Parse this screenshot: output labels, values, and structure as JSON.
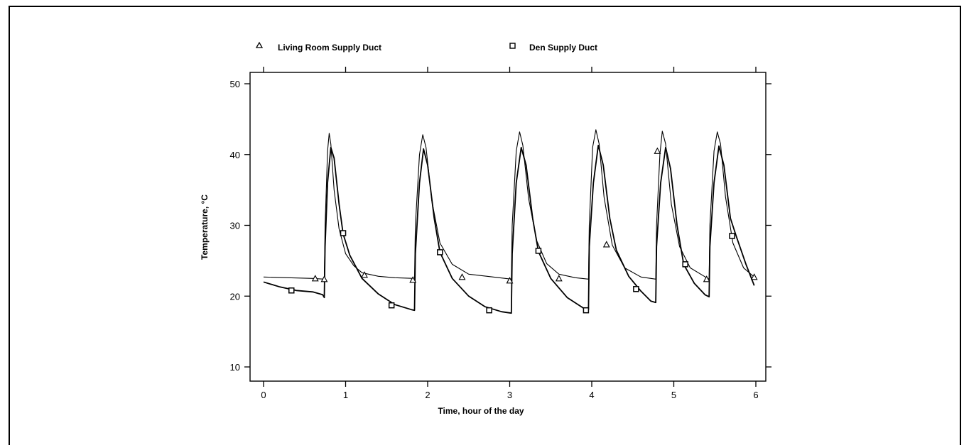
{
  "chart_data": {
    "type": "line",
    "xlabel": "Time, hour of the day",
    "ylabel": "Temperature,",
    "ylabel_unit": "°C",
    "xlim": [
      0,
      6
    ],
    "ylim": [
      10,
      50
    ],
    "xticks": [
      0,
      1,
      2,
      3,
      4,
      5,
      6
    ],
    "yticks": [
      10,
      20,
      30,
      40,
      50
    ],
    "legend_position": "top",
    "grid": false,
    "series": [
      {
        "name": "Living Room Supply Duct",
        "marker": "triangle",
        "color": "#000000",
        "x": [
          0.0,
          0.3,
          0.6,
          0.74,
          0.75,
          0.78,
          0.8,
          0.82,
          0.86,
          0.92,
          1.0,
          1.1,
          1.2,
          1.4,
          1.6,
          1.84,
          1.85,
          1.9,
          1.94,
          1.98,
          2.05,
          2.15,
          2.3,
          2.5,
          2.8,
          3.02,
          3.03,
          3.08,
          3.12,
          3.16,
          3.23,
          3.33,
          3.45,
          3.6,
          3.8,
          3.96,
          3.97,
          4.01,
          4.05,
          4.09,
          4.15,
          4.25,
          4.4,
          4.6,
          4.78,
          4.79,
          4.83,
          4.86,
          4.9,
          4.97,
          5.07,
          5.2,
          5.4,
          5.43,
          5.44,
          5.49,
          5.53,
          5.57,
          5.63,
          5.72,
          5.85,
          5.98
        ],
        "y": [
          22.7,
          22.6,
          22.5,
          22.4,
          30.0,
          40.5,
          43.0,
          41.5,
          35.0,
          29.5,
          26.0,
          24.3,
          23.3,
          22.8,
          22.6,
          22.5,
          30.0,
          40.0,
          42.8,
          41.0,
          33.5,
          27.5,
          24.5,
          23.1,
          22.7,
          22.4,
          30.0,
          40.5,
          43.2,
          41.3,
          33.8,
          27.8,
          24.6,
          23.1,
          22.6,
          22.4,
          30.0,
          41.0,
          43.5,
          41.5,
          34.0,
          27.2,
          24.0,
          22.7,
          22.4,
          30.0,
          40.0,
          43.3,
          41.5,
          33.0,
          27.0,
          24.0,
          22.6,
          22.4,
          30.0,
          40.5,
          43.2,
          41.5,
          34.0,
          27.5,
          24.0,
          22.7
        ]
      },
      {
        "name": "Den Supply Duct",
        "marker": "square",
        "color": "#000000",
        "x": [
          0.0,
          0.2,
          0.4,
          0.6,
          0.72,
          0.74,
          0.75,
          0.78,
          0.82,
          0.86,
          0.92,
          0.97,
          1.05,
          1.2,
          1.4,
          1.6,
          1.8,
          1.84,
          1.85,
          1.9,
          1.95,
          2.0,
          2.08,
          2.15,
          2.3,
          2.5,
          2.7,
          2.9,
          3.02,
          3.03,
          3.08,
          3.14,
          3.2,
          3.28,
          3.35,
          3.5,
          3.7,
          3.9,
          3.96,
          3.97,
          4.02,
          4.08,
          4.14,
          4.22,
          4.3,
          4.45,
          4.6,
          4.72,
          4.78,
          4.79,
          4.84,
          4.9,
          4.96,
          5.04,
          5.12,
          5.25,
          5.38,
          5.43,
          5.44,
          5.49,
          5.55,
          5.61,
          5.69,
          5.76,
          5.88,
          5.98
        ],
        "y": [
          22.0,
          21.3,
          20.8,
          20.6,
          20.2,
          19.8,
          27.0,
          36.0,
          41.0,
          39.5,
          33.0,
          28.8,
          25.8,
          22.5,
          20.3,
          18.8,
          18.1,
          18.0,
          26.0,
          36.0,
          40.8,
          38.5,
          31.0,
          26.2,
          22.5,
          20.0,
          18.5,
          17.8,
          17.6,
          26.0,
          36.0,
          41.0,
          38.5,
          31.0,
          26.3,
          22.5,
          19.8,
          18.3,
          18.1,
          27.0,
          36.0,
          41.3,
          38.5,
          31.0,
          26.5,
          22.8,
          20.7,
          19.3,
          19.1,
          27.0,
          36.0,
          41.0,
          38.0,
          30.0,
          24.5,
          21.8,
          20.2,
          19.9,
          27.0,
          36.0,
          41.2,
          38.5,
          31.0,
          28.5,
          24.5,
          21.5
        ]
      }
    ],
    "markers": [
      {
        "series": 0,
        "points": [
          [
            0.63,
            22.5
          ],
          [
            0.74,
            22.4
          ],
          [
            1.23,
            23.0
          ],
          [
            1.82,
            22.3
          ],
          [
            2.42,
            22.7
          ],
          [
            3.0,
            22.2
          ],
          [
            3.6,
            22.5
          ],
          [
            4.18,
            27.3
          ],
          [
            4.8,
            40.5
          ],
          [
            5.4,
            22.4
          ],
          [
            5.98,
            22.7
          ]
        ]
      },
      {
        "series": 1,
        "points": [
          [
            0.34,
            20.8
          ],
          [
            0.97,
            28.9
          ],
          [
            1.56,
            18.7
          ],
          [
            2.15,
            26.2
          ],
          [
            2.75,
            18.0
          ],
          [
            3.35,
            26.4
          ],
          [
            3.93,
            18.0
          ],
          [
            4.54,
            21.0
          ],
          [
            5.14,
            24.5
          ],
          [
            5.71,
            28.5
          ]
        ]
      }
    ]
  }
}
